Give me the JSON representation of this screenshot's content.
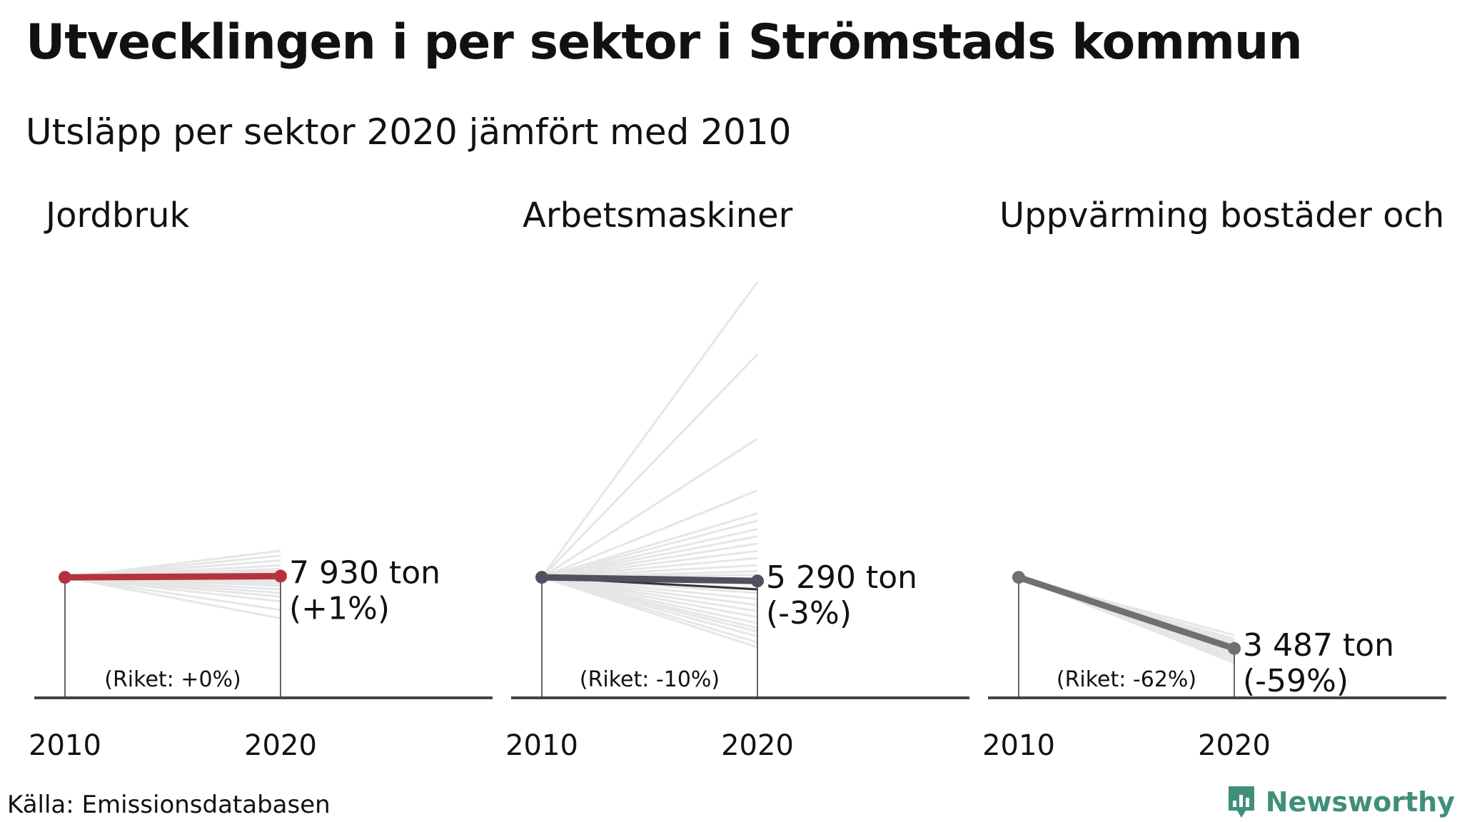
{
  "header": {
    "title": "Utvecklingen i per sektor i Strömstads kommun",
    "subtitle": "Utsläpp per sektor 2020 jämfört med 2010"
  },
  "footer": {
    "source": "Källa: Emissionsdatabasen",
    "brand": "Newsworthy",
    "brand_icon": "bar-chart-logo-icon",
    "brand_color": "#3f8f7a"
  },
  "chart_data": [
    {
      "type": "line",
      "title": "Jordbruk",
      "x": [
        "2010",
        "2020"
      ],
      "y_index_range": [
        0,
        3.6
      ],
      "series": [
        {
          "values": [
            7851,
            7930
          ],
          "highlight": true,
          "color": "#b5333d"
        }
      ],
      "value_label": "7 930 ton",
      "change_label": "(+1%)",
      "riket_label": "(Riket: +0%)",
      "comparison_color": "#e6e6e6",
      "comparison_end_index": [
        1.22,
        1.18,
        1.14,
        1.1,
        1.07,
        1.05,
        1.03,
        1.02,
        1.01,
        0.99,
        0.97,
        0.95,
        0.93,
        0.9,
        0.87,
        0.84,
        0.8,
        0.73,
        0.66
      ]
    },
    {
      "type": "line",
      "title": "Arbetsmaskiner",
      "x": [
        "2010",
        "2020"
      ],
      "y_index_range": [
        0,
        3.6
      ],
      "series": [
        {
          "values": [
            5454,
            5290
          ],
          "highlight": true,
          "color": "#505060"
        }
      ],
      "value_label": "5 290 ton",
      "change_label": "(-3%)",
      "riket_label": "(Riket: -10%)",
      "comparison_color": "#e6e6e6",
      "comparison_extra_color": "#333333",
      "comparison_extra_end_index": 0.9,
      "comparison_end_index": [
        3.45,
        2.85,
        2.15,
        1.72,
        1.53,
        1.47,
        1.4,
        1.34,
        1.28,
        1.22,
        1.16,
        1.1,
        1.05,
        1.02,
        0.99,
        0.95,
        0.91,
        0.87,
        0.82,
        0.77,
        0.72,
        0.67,
        0.62,
        0.58,
        0.55,
        0.51,
        0.46,
        0.42
      ]
    },
    {
      "type": "line",
      "title": "Uppvärming bostäder och",
      "x": [
        "2010",
        "2020"
      ],
      "y_index_range": [
        0,
        3.6
      ],
      "series": [
        {
          "values": [
            8505,
            3487
          ],
          "highlight": true,
          "color": "#707070"
        }
      ],
      "value_label": "3 487 ton",
      "change_label": "(-59%)",
      "riket_label": "(Riket: -62%)",
      "comparison_color": "#e6e6e6",
      "comparison_extra_color": "#333333",
      "comparison_extra_end_index": 0.4,
      "comparison_end_index": [
        0.52,
        0.49,
        0.47,
        0.45,
        0.43,
        0.41,
        0.39,
        0.37,
        0.35,
        0.33,
        0.31,
        0.29
      ]
    }
  ]
}
